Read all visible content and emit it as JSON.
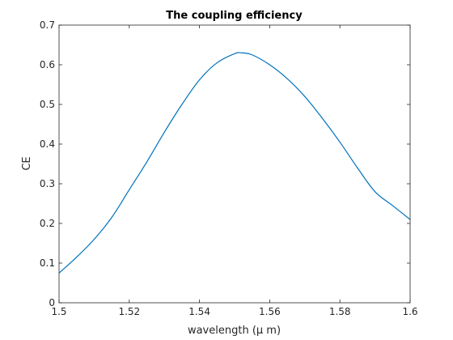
{
  "chart_data": {
    "type": "line",
    "title": "The coupling efficiency",
    "xlabel": "wavelength (μ m)",
    "ylabel": "CE",
    "xlim": [
      1.5,
      1.6
    ],
    "ylim": [
      0,
      0.7
    ],
    "xticks": [
      1.5,
      1.52,
      1.54,
      1.56,
      1.58,
      1.6
    ],
    "xtick_labels": [
      "1.5",
      "1.52",
      "1.54",
      "1.56",
      "1.58",
      "1.6"
    ],
    "yticks": [
      0,
      0.1,
      0.2,
      0.3,
      0.4,
      0.5,
      0.6,
      0.7
    ],
    "ytick_labels": [
      "0",
      "0.1",
      "0.2",
      "0.3",
      "0.4",
      "0.5",
      "0.6",
      "0.7"
    ],
    "grid": false,
    "legend": "none",
    "series": [
      {
        "color": "#0072bd",
        "x": [
          1.5,
          1.505,
          1.51,
          1.515,
          1.52,
          1.525,
          1.53,
          1.535,
          1.54,
          1.545,
          1.55,
          1.552,
          1.555,
          1.56,
          1.565,
          1.57,
          1.575,
          1.58,
          1.585,
          1.59,
          1.595,
          1.6
        ],
        "y": [
          0.075,
          0.115,
          0.16,
          0.215,
          0.285,
          0.355,
          0.43,
          0.5,
          0.562,
          0.605,
          0.628,
          0.63,
          0.625,
          0.6,
          0.565,
          0.52,
          0.465,
          0.405,
          0.34,
          0.28,
          0.245,
          0.21
        ]
      }
    ]
  }
}
